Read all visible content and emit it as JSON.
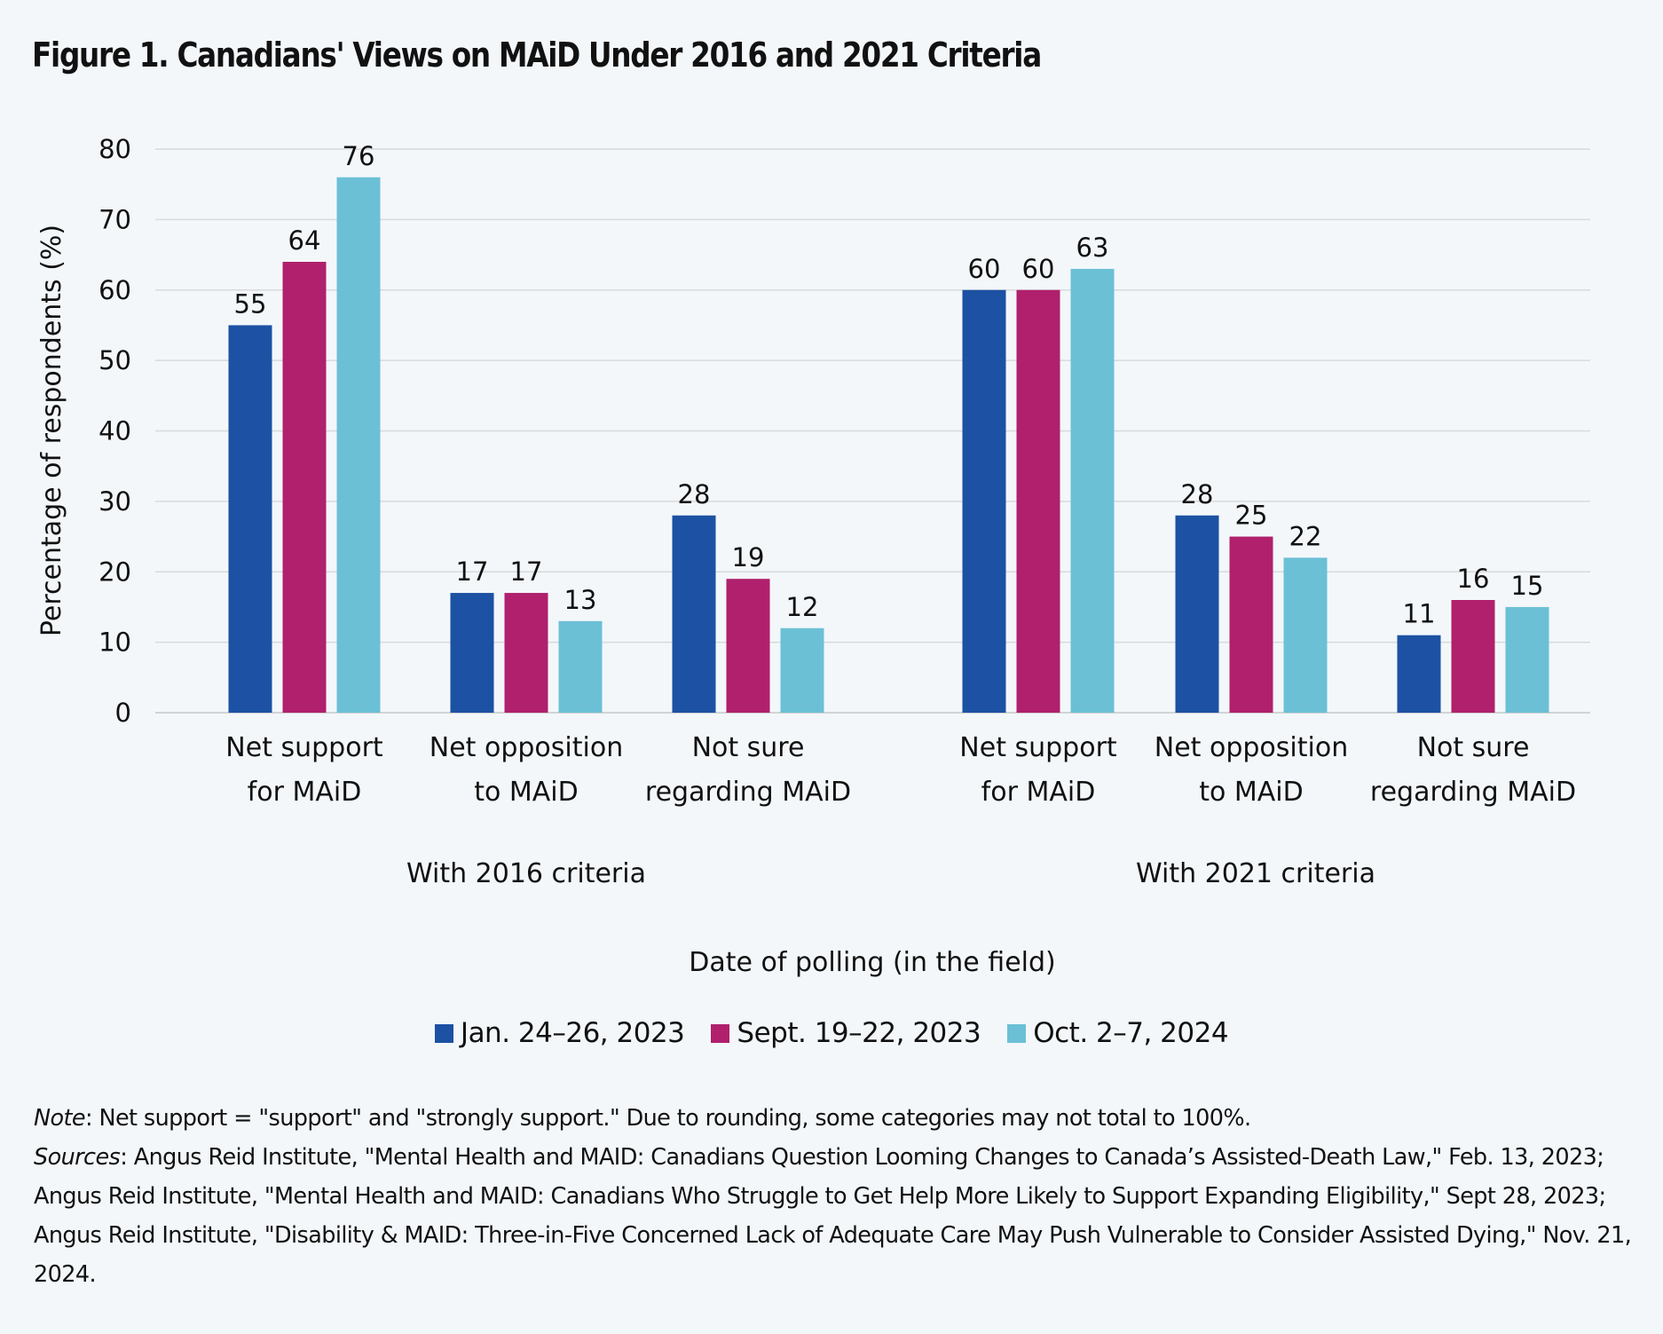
{
  "title": "Figure 1. Canadians' Views on MAiD Under 2016 and 2021 Criteria",
  "chart_data": {
    "type": "bar",
    "title": "Figure 1. Canadians' Views on MAiD Under 2016 and 2021 Criteria",
    "ylabel": "Percentage of respondents (%)",
    "xlabel": "Date of polling (in the field)",
    "ylim": [
      0,
      80
    ],
    "yticks": [
      0,
      10,
      20,
      30,
      40,
      50,
      60,
      70,
      80
    ],
    "grid": true,
    "legend_position": "bottom",
    "groups": [
      {
        "label": "With 2016 criteria",
        "categories": [
          [
            "Net support",
            "for MAiD"
          ],
          [
            "Net opposition",
            "to MAiD"
          ],
          [
            "Not sure",
            "regarding MAiD"
          ]
        ]
      },
      {
        "label": "With 2021 criteria",
        "categories": [
          [
            "Net support",
            "for MAiD"
          ],
          [
            "Net opposition",
            "to MAiD"
          ],
          [
            "Not sure",
            "regarding MAiD"
          ]
        ]
      }
    ],
    "series": [
      {
        "name": "Jan. 24–26, 2023",
        "color": "#1c51a3",
        "values": [
          55,
          17,
          28,
          60,
          28,
          11
        ]
      },
      {
        "name": "Sept. 19–22, 2023",
        "color": "#b0206c",
        "values": [
          64,
          17,
          19,
          60,
          25,
          16
        ]
      },
      {
        "name": "Oct. 2–7, 2024",
        "color": "#6bc0d6",
        "values": [
          76,
          13,
          12,
          63,
          22,
          15
        ]
      }
    ]
  },
  "notes": {
    "note_label": "Note",
    "note_text": ": Net support = \"support\" and \"strongly support.\" Due to rounding, some categories may not total to 100%.",
    "sources_label": "Sources",
    "sources_text": ": Angus Reid Institute, \"Mental Health and MAID: Canadians Question Looming Changes to Canada’s Assisted-Death Law,\" Feb. 13, 2023; Angus Reid Institute, \"Mental Health and MAID: Canadians Who Struggle to Get Help More Likely to Support Expanding Eligibility,\" Sept 28, 2023; Angus Reid Institute, \"Disability & MAID: Three-in-Five Concerned Lack of Adequate Care May Push Vulnerable to Consider Assisted Dying,\" Nov. 21, 2024."
  }
}
